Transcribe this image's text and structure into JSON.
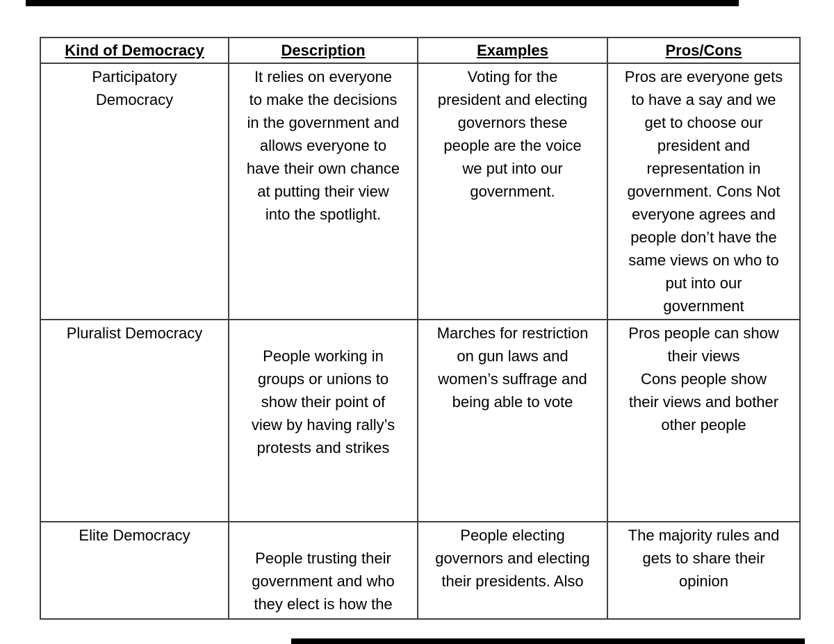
{
  "page": {
    "background": "#ffffff",
    "artifact_bar_color": "#000000"
  },
  "table": {
    "headers": [
      "Kind of Democracy",
      "Description",
      "Examples",
      "Pros/Cons"
    ],
    "rows": [
      {
        "kind": [
          "Participatory",
          "Democracy"
        ],
        "description": [
          "It relies on everyone",
          "to make the decisions",
          "in the government and",
          "allows everyone to",
          "have their own chance",
          "at putting their view",
          "into the spotlight."
        ],
        "examples": [
          "Voting for the",
          "president and electing",
          "governors these",
          "people are the voice",
          "we put into our",
          "government."
        ],
        "pros_cons": [
          "Pros are everyone gets",
          "to have a say and we",
          "get to choose our",
          "president and",
          "representation in",
          "government. Cons Not",
          "everyone agrees and",
          "people don’t have the",
          "same views on who to",
          "put into our",
          "government"
        ]
      },
      {
        "kind": [
          "Pluralist Democracy"
        ],
        "description": [
          "",
          "People working in",
          "groups or unions to",
          "show their point of",
          "view by having rally’s",
          "protests and strikes"
        ],
        "examples": [
          "Marches for restriction",
          "on gun laws and",
          "women’s suffrage and",
          "being able to vote"
        ],
        "pros_cons": [
          "Pros people  can show",
          "their views",
          "Cons people show",
          "their views and bother",
          "other people"
        ]
      },
      {
        "kind": [
          "Elite Democracy"
        ],
        "description": [
          "",
          "People trusting their",
          "government and who",
          "they elect is how the"
        ],
        "examples": [
          "People electing",
          "governors and electing",
          "their presidents. Also"
        ],
        "pros_cons": [
          "The majority rules and",
          "gets to share their",
          "opinion"
        ]
      }
    ]
  }
}
